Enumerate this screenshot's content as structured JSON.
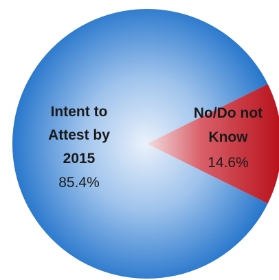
{
  "chart_data": {
    "type": "pie",
    "title": "",
    "slices": [
      {
        "label_lines": [
          "Intent to",
          "Attest by",
          "2015"
        ],
        "value": 85.4,
        "value_label": "85.4%",
        "color": "#2f7dce"
      },
      {
        "label_lines": [
          "No/Do not",
          "Know"
        ],
        "value": 14.6,
        "value_label": "14.6%",
        "color": "#c0141c"
      }
    ]
  }
}
